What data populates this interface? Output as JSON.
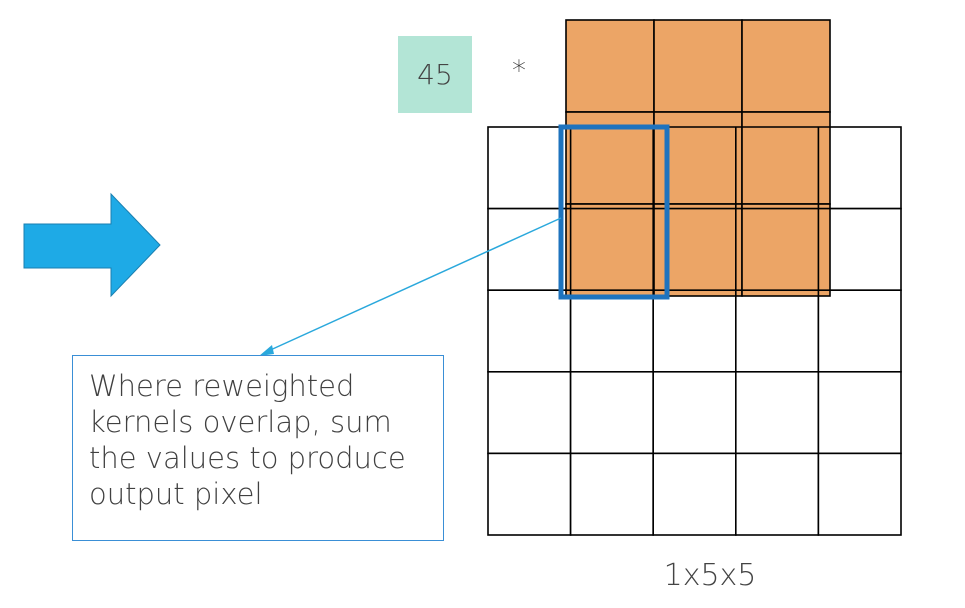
{
  "kernel": {
    "weight_value": "45",
    "operator": "*",
    "rows": 3,
    "cols": 3
  },
  "output_grid": {
    "rows": 5,
    "cols": 5,
    "dimensions_label": "1x5x5"
  },
  "callout": {
    "text": "Where reweighted kernels overlap, sum the values to produce output pixel"
  },
  "colors": {
    "kernel_fill": "#eba05e",
    "weight_box": "#b3e5d6",
    "arrow_fill": "#1eaae6",
    "highlight_border": "#1e73be",
    "connector": "#2aa8dc",
    "callout_border": "#3a8fd6"
  },
  "icons": {
    "arrow": "right-arrow-icon"
  }
}
